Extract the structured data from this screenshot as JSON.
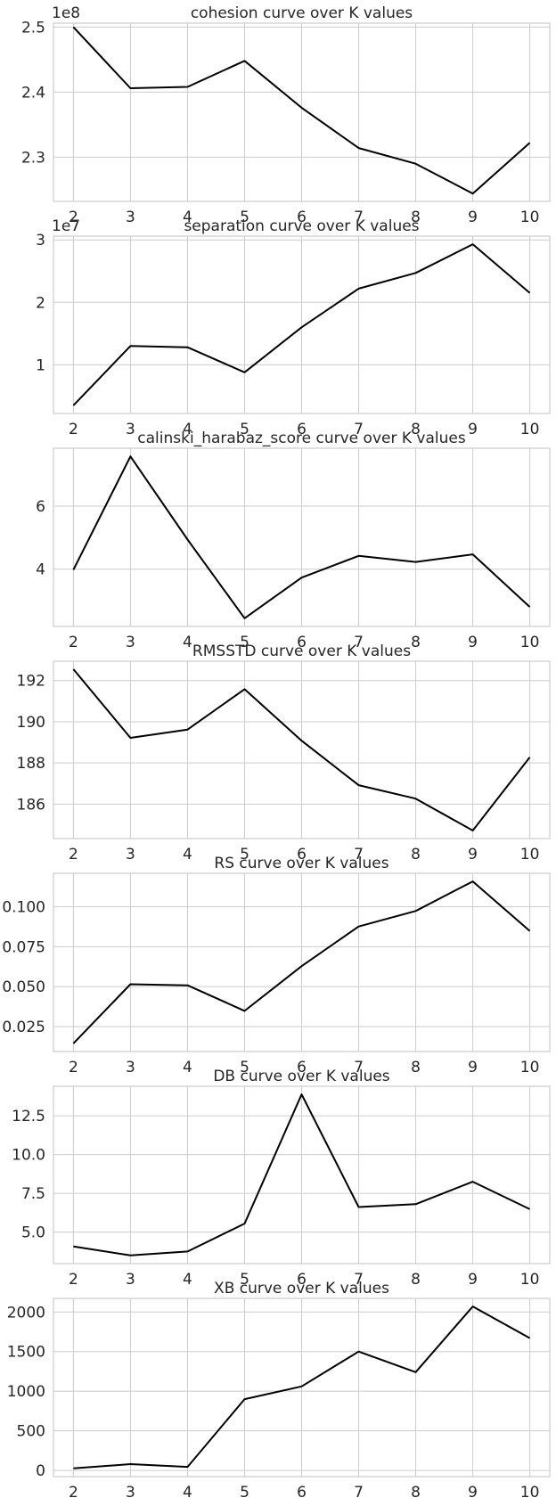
{
  "chart_data": [
    {
      "type": "line",
      "title": "cohesion curve over K values",
      "x": [
        2,
        3,
        4,
        5,
        6,
        7,
        8,
        9,
        10
      ],
      "series": [
        {
          "values": [
            250000000,
            240600000,
            240800000,
            244800000,
            237600000,
            231400000,
            229000000,
            224400000,
            232200000
          ]
        }
      ],
      "offset_text": "1e8",
      "yscale_factor": 100000000,
      "yticks": [
        2.3,
        2.4,
        2.5
      ],
      "ytick_labels": [
        "2.3",
        "2.4",
        "2.5"
      ],
      "xticks": [
        2,
        3,
        4,
        5,
        6,
        7,
        8,
        9,
        10
      ],
      "xtick_labels": [
        "2",
        "3",
        "4",
        "5",
        "6",
        "7",
        "8",
        "9",
        "10"
      ],
      "xlim": [
        1.65,
        10.35
      ],
      "ylim": [
        223200000,
        250600000
      ],
      "grid": true,
      "color": "#000000"
    },
    {
      "type": "line",
      "title": "separation curve over K values",
      "x": [
        2,
        3,
        4,
        5,
        6,
        7,
        8,
        9,
        10
      ],
      "series": [
        {
          "values": [
            3500000,
            13000000,
            12800000,
            8800000,
            16000000,
            22200000,
            24700000,
            29300000,
            21500000
          ]
        }
      ],
      "offset_text": "1e7",
      "yscale_factor": 10000000,
      "yticks": [
        1,
        2,
        3
      ],
      "ytick_labels": [
        "1",
        "2",
        "3"
      ],
      "xticks": [
        2,
        3,
        4,
        5,
        6,
        7,
        8,
        9,
        10
      ],
      "xtick_labels": [
        "2",
        "3",
        "4",
        "5",
        "6",
        "7",
        "8",
        "9",
        "10"
      ],
      "xlim": [
        1.65,
        10.35
      ],
      "ylim": [
        2200000,
        30600000
      ],
      "grid": true,
      "color": "#000000"
    },
    {
      "type": "line",
      "title": "calinski_harabaz_score curve over K values",
      "x": [
        2,
        3,
        4,
        5,
        6,
        7,
        8,
        9,
        10
      ],
      "series": [
        {
          "values": [
            3.98,
            7.58,
            4.94,
            2.44,
            3.73,
            4.42,
            4.23,
            4.47,
            2.8
          ]
        }
      ],
      "offset_text": "",
      "yscale_factor": 1,
      "yticks": [
        4,
        6
      ],
      "ytick_labels": [
        "4",
        "6"
      ],
      "xticks": [
        2,
        3,
        4,
        5,
        6,
        7,
        8,
        9,
        10
      ],
      "xtick_labels": [
        "2",
        "3",
        "4",
        "5",
        "6",
        "7",
        "8",
        "9",
        "10"
      ],
      "xlim": [
        1.65,
        10.35
      ],
      "ylim": [
        2.18,
        7.84
      ],
      "grid": true,
      "color": "#000000"
    },
    {
      "type": "line",
      "title": "RMSSTD curve over K values",
      "x": [
        2,
        3,
        4,
        5,
        6,
        7,
        8,
        9,
        10
      ],
      "series": [
        {
          "values": [
            192.55,
            189.22,
            189.62,
            191.58,
            189.08,
            186.92,
            186.27,
            184.72,
            188.28
          ]
        }
      ],
      "offset_text": "",
      "yscale_factor": 1,
      "yticks": [
        186,
        188,
        190,
        192
      ],
      "ytick_labels": [
        "186",
        "188",
        "190",
        "192"
      ],
      "xticks": [
        2,
        3,
        4,
        5,
        6,
        7,
        8,
        9,
        10
      ],
      "xtick_labels": [
        "2",
        "3",
        "4",
        "5",
        "6",
        "7",
        "8",
        "9",
        "10"
      ],
      "xlim": [
        1.65,
        10.35
      ],
      "ylim": [
        184.33,
        192.94
      ],
      "grid": true,
      "color": "#000000"
    },
    {
      "type": "line",
      "title": "RS curve over K values",
      "x": [
        2,
        3,
        4,
        5,
        6,
        7,
        8,
        9,
        10
      ],
      "series": [
        {
          "values": [
            0.0145,
            0.0515,
            0.0508,
            0.0348,
            0.0628,
            0.0876,
            0.0973,
            0.1158,
            0.0848
          ]
        }
      ],
      "offset_text": "",
      "yscale_factor": 1,
      "yticks": [
        0.025,
        0.05,
        0.075,
        0.1
      ],
      "ytick_labels": [
        "0.025",
        "0.050",
        "0.075",
        "0.100"
      ],
      "xticks": [
        2,
        3,
        4,
        5,
        6,
        7,
        8,
        9,
        10
      ],
      "xtick_labels": [
        "2",
        "3",
        "4",
        "5",
        "6",
        "7",
        "8",
        "9",
        "10"
      ],
      "xlim": [
        1.65,
        10.35
      ],
      "ylim": [
        0.0094,
        0.1209
      ],
      "grid": true,
      "color": "#000000"
    },
    {
      "type": "line",
      "title": "DB curve over K values",
      "x": [
        2,
        3,
        4,
        5,
        6,
        7,
        8,
        9,
        10
      ],
      "series": [
        {
          "values": [
            4.08,
            3.5,
            3.75,
            5.55,
            13.88,
            6.62,
            6.8,
            8.25,
            6.48
          ]
        }
      ],
      "offset_text": "",
      "yscale_factor": 1,
      "yticks": [
        5.0,
        7.5,
        10.0,
        12.5
      ],
      "ytick_labels": [
        "5.0",
        "7.5",
        "10.0",
        "12.5"
      ],
      "xticks": [
        2,
        3,
        4,
        5,
        6,
        7,
        8,
        9,
        10
      ],
      "xtick_labels": [
        "2",
        "3",
        "4",
        "5",
        "6",
        "7",
        "8",
        "9",
        "10"
      ],
      "xlim": [
        1.65,
        10.35
      ],
      "ylim": [
        2.97,
        14.4
      ],
      "grid": true,
      "color": "#000000"
    },
    {
      "type": "line",
      "title": "XB curve over K values",
      "x": [
        2,
        3,
        4,
        5,
        6,
        7,
        8,
        9,
        10
      ],
      "series": [
        {
          "values": [
            25,
            80,
            45,
            900,
            1060,
            1500,
            1240,
            2070,
            1670
          ]
        }
      ],
      "offset_text": "",
      "yscale_factor": 1,
      "yticks": [
        0,
        500,
        1000,
        1500,
        2000
      ],
      "ytick_labels": [
        "0",
        "500",
        "1000",
        "1500",
        "2000"
      ],
      "xticks": [
        2,
        3,
        4,
        5,
        6,
        7,
        8,
        9,
        10
      ],
      "xtick_labels": [
        "2",
        "3",
        "4",
        "5",
        "6",
        "7",
        "8",
        "9",
        "10"
      ],
      "xlim": [
        1.65,
        10.35
      ],
      "ylim": [
        -78,
        2172
      ],
      "grid": true,
      "color": "#000000"
    }
  ]
}
